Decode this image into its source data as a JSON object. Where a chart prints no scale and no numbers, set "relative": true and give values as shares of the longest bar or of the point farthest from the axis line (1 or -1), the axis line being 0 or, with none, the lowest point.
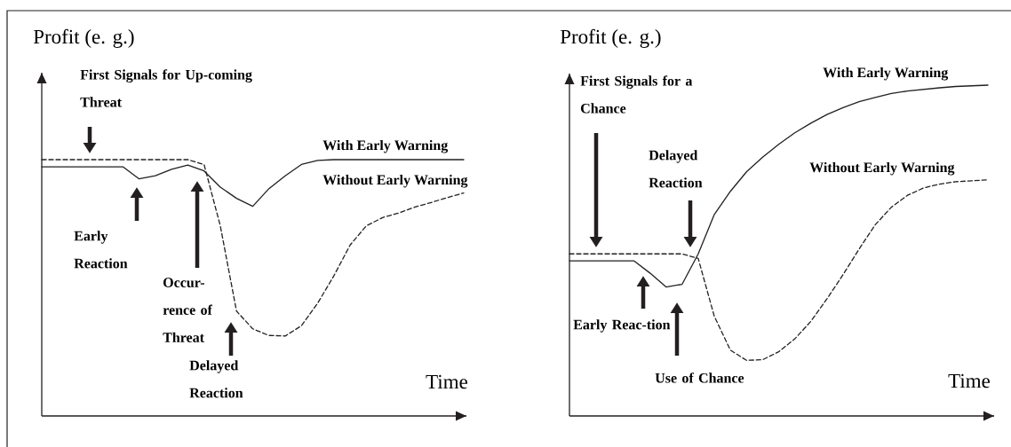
{
  "chart_data": [
    {
      "type": "line",
      "relative": true,
      "xlabel": "Time",
      "ylabel": "Profit (e. g.)",
      "categories": [
        null,
        null,
        null,
        null,
        null,
        null,
        null,
        null,
        null,
        null,
        null,
        null,
        null,
        null,
        null,
        null,
        null,
        null,
        null,
        null,
        null,
        null,
        null,
        null,
        null,
        null,
        null
      ],
      "series": [
        {
          "name": "With Early Warning",
          "color": "#231f20",
          "line_style": "solid",
          "values": [
            0.972,
            0.972,
            0.972,
            0.972,
            0.972,
            0.972,
            0.925,
            0.937,
            0.962,
            0.979,
            0.956,
            0.893,
            0.849,
            0.818,
            0.887,
            0.937,
            0.981,
            0.997,
            1.0,
            1.0,
            1.0,
            1.0,
            1.0,
            1.0,
            1.0,
            1.0,
            1.0
          ]
        },
        {
          "name": "Without Early Warning",
          "color": "#231f20",
          "line_style": "dashed",
          "values": [
            1.0,
            1.0,
            1.0,
            1.0,
            1.0,
            1.0,
            1.0,
            1.0,
            1.0,
            1.0,
            0.981,
            0.742,
            0.409,
            0.34,
            0.314,
            0.312,
            0.352,
            0.44,
            0.547,
            0.667,
            0.742,
            0.774,
            0.792,
            0.815,
            0.833,
            0.852,
            0.87
          ]
        }
      ],
      "annotations": [
        "First Signals for Up-coming Threat",
        "Early Reaction",
        "Occur-rence of Threat",
        "Delayed Reaction"
      ]
    },
    {
      "type": "line",
      "relative": true,
      "xlabel": "Time",
      "ylabel": "Profit (e. g.)",
      "categories": [
        null,
        null,
        null,
        null,
        null,
        null,
        null,
        null,
        null,
        null,
        null,
        null,
        null,
        null,
        null,
        null,
        null,
        null,
        null,
        null,
        null,
        null,
        null,
        null,
        null,
        null,
        null
      ],
      "series": [
        {
          "name": "With Early Warning",
          "color": "#231f20",
          "line_style": "solid",
          "values": [
            0.469,
            0.469,
            0.469,
            0.469,
            0.469,
            0.432,
            0.39,
            0.398,
            0.49,
            0.609,
            0.679,
            0.738,
            0.782,
            0.821,
            0.856,
            0.885,
            0.911,
            0.932,
            0.95,
            0.963,
            0.975,
            0.982,
            0.987,
            0.992,
            0.996,
            0.998,
            1.0
          ]
        },
        {
          "name": "Without Early Warning",
          "color": "#231f20",
          "line_style": "dashed",
          "values": [
            0.49,
            0.49,
            0.49,
            0.49,
            0.49,
            0.49,
            0.49,
            0.49,
            0.476,
            0.301,
            0.199,
            0.168,
            0.17,
            0.194,
            0.233,
            0.286,
            0.354,
            0.427,
            0.505,
            0.578,
            0.631,
            0.667,
            0.689,
            0.701,
            0.708,
            0.711,
            0.714
          ]
        }
      ],
      "annotations": [
        "First Signals for a Chance",
        "Delayed Reaction",
        "Early Reac-tion",
        "Use of Chance"
      ]
    }
  ]
}
